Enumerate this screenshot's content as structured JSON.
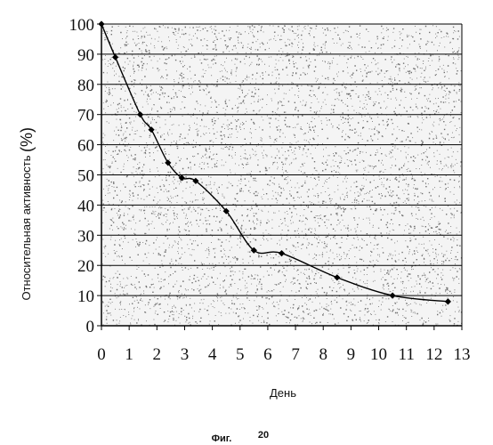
{
  "chart_data": {
    "type": "line",
    "x": [
      0,
      0.5,
      1.4,
      1.8,
      2.4,
      2.9,
      3.4,
      4.5,
      5.5,
      6.5,
      8.5,
      10.5,
      12.5
    ],
    "series": [
      {
        "values": [
          100,
          89,
          70,
          65,
          54,
          49,
          48,
          38,
          25,
          24,
          16,
          10,
          8
        ]
      }
    ],
    "xticks": [
      "0",
      "1",
      "2",
      "3",
      "4",
      "5",
      "6",
      "7",
      "8",
      "9",
      "10",
      "11",
      "12",
      "13"
    ],
    "yticks": [
      "0",
      "10",
      "20",
      "30",
      "40",
      "50",
      "60",
      "70",
      "80",
      "90",
      "100"
    ],
    "xlim": [
      0,
      13
    ],
    "ylim": [
      0,
      100
    ],
    "xlabel": "День",
    "ylabel": "Относительная активность",
    "ylabel_unit": "(%)",
    "grid": "horizontal",
    "background": "stippled",
    "line_color": "#000000",
    "marker": "diamond"
  },
  "figure": {
    "caption_label": "Фиг.",
    "caption_number": "20"
  }
}
